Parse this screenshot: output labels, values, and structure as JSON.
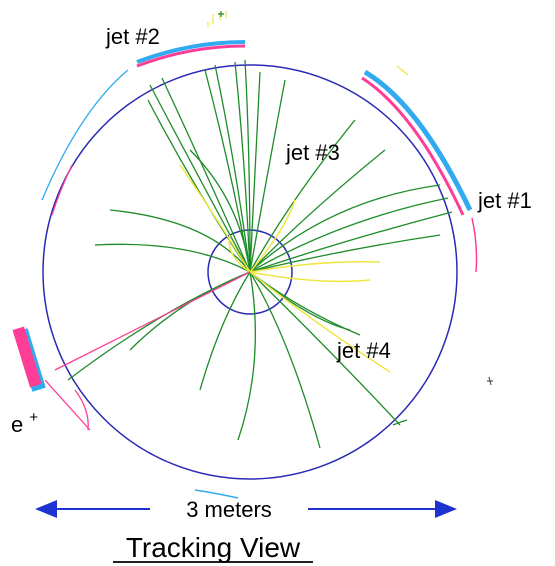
{
  "labels": {
    "jet1": "jet #1",
    "jet2": "jet #2",
    "jet3": "jet #3",
    "jet4": "jet #4",
    "positron_base": "e",
    "positron_sup": "+",
    "scale": "3 meters",
    "title": "Tracking View"
  },
  "colors": {
    "detector_circle": "#2a2ab4",
    "track_green": "#1e8c28",
    "track_yellow": "#f0e640",
    "track_magenta": "#ff3c96",
    "cluster_blue": "#32aaf0",
    "arrow_blue": "#1e32d2"
  }
}
